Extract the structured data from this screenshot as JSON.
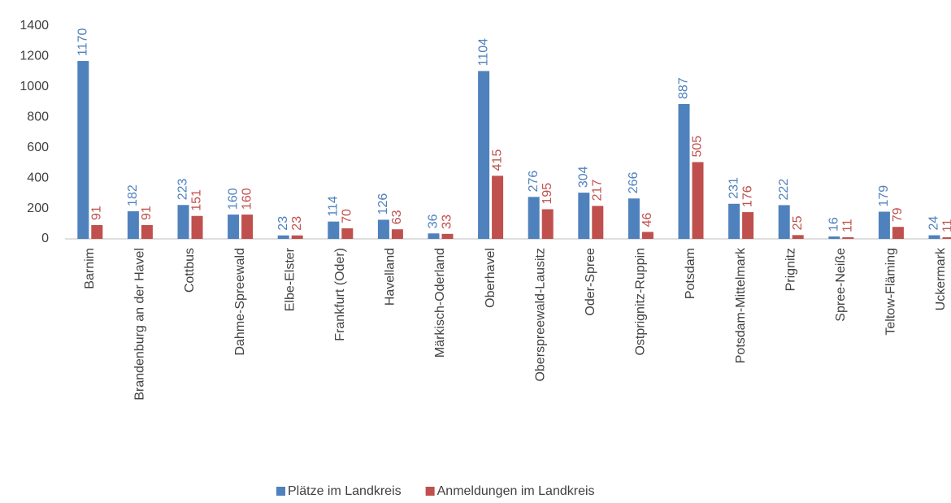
{
  "chart_data": {
    "type": "bar",
    "categories": [
      "Barnim",
      "Brandenburg an der Havel",
      "Cottbus",
      "Dahme-Spreewald",
      "Elbe-Elster",
      "Frankfurt (Oder)",
      "Havelland",
      "Märkisch-Oderland",
      "Oberhavel",
      "Oberspreewald-Lausitz",
      "Oder-Spree",
      "Ostprignitz-Ruppin",
      "Potsdam",
      "Potsdam-Mittelmark",
      "Prignitz",
      "Spree-Neiße",
      "Teltow-Fläming",
      "Uckermark"
    ],
    "series": [
      {
        "name": "Plätze im Landkreis",
        "color": "#4f81bd",
        "values": [
          1170,
          182,
          223,
          160,
          23,
          114,
          126,
          36,
          1104,
          276,
          304,
          266,
          887,
          231,
          222,
          16,
          179,
          24
        ]
      },
      {
        "name": "Anmeldungen im Landkreis",
        "color": "#c0504d",
        "values": [
          91,
          91,
          151,
          160,
          23,
          70,
          63,
          33,
          415,
          195,
          217,
          46,
          505,
          176,
          25,
          11,
          79,
          11
        ]
      }
    ],
    "ylim": [
      0,
      1400
    ],
    "yticks": [
      0,
      200,
      400,
      600,
      800,
      1000,
      1200,
      1400
    ],
    "grid": false,
    "legend": "bottom"
  }
}
